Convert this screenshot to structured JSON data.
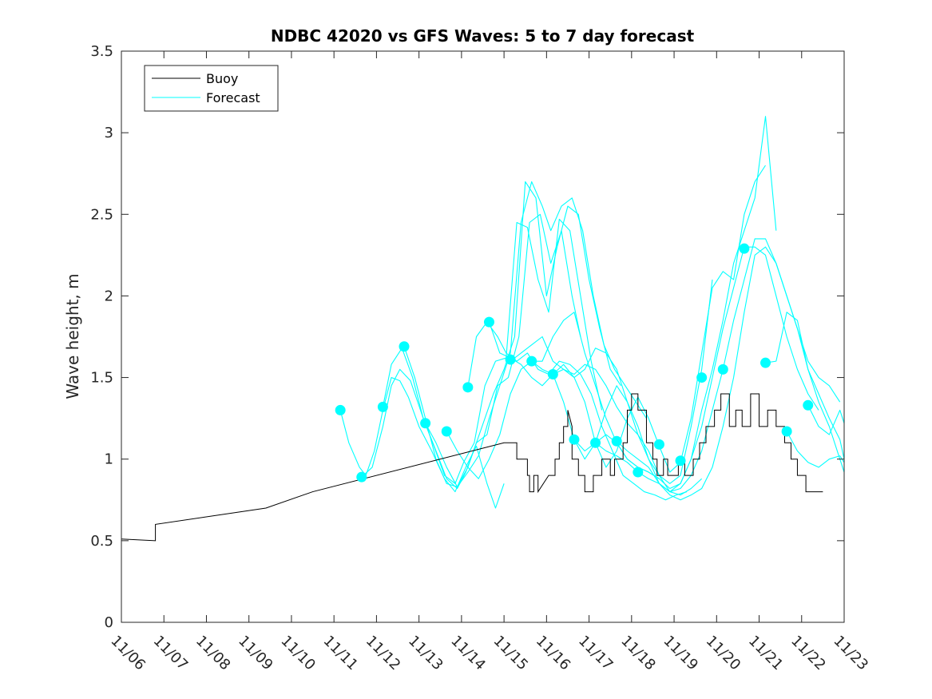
{
  "chart_data": {
    "type": "line",
    "title": "NDBC 42020 vs GFS Waves: 5 to 7 day forecast",
    "xlabel": "",
    "ylabel": "Wave height, m",
    "xlim": [
      0,
      17
    ],
    "ylim": [
      0,
      3.5
    ],
    "x_ticks": [
      0,
      1,
      2,
      3,
      4,
      5,
      6,
      7,
      8,
      9,
      10,
      11,
      12,
      13,
      14,
      15,
      16,
      17
    ],
    "x_tick_labels": [
      "11/06",
      "11/07",
      "11/08",
      "11/09",
      "11/10",
      "11/11",
      "11/12",
      "11/13",
      "11/14",
      "11/15",
      "11/16",
      "11/17",
      "11/18",
      "11/19",
      "11/20",
      "11/21",
      "11/22",
      "11/23"
    ],
    "y_ticks": [
      0,
      0.5,
      1,
      1.5,
      2,
      2.5,
      3,
      3.5
    ],
    "y_tick_labels": [
      "0",
      "0.5",
      "1",
      "1.5",
      "2",
      "2.5",
      "3",
      "3.5"
    ],
    "legend": {
      "location": "top-left",
      "entries": [
        "Buoy",
        "Forecast"
      ]
    },
    "colors": {
      "buoy": "#000000",
      "forecast": "#00ffff",
      "axis": "#262626"
    },
    "series": [
      {
        "name": "Buoy",
        "x": [
          0,
          0.8,
          0.8,
          3.4,
          4.5,
          9.0,
          9.3,
          9.3,
          9.55,
          9.55,
          9.6,
          9.6,
          9.7,
          9.7,
          9.8,
          9.8,
          10.05,
          10.05,
          10.2,
          10.2,
          10.3,
          10.3,
          10.4,
          10.4,
          10.5,
          10.5,
          10.6,
          10.6,
          10.75,
          10.75,
          10.9,
          10.9,
          11.1,
          11.1,
          11.3,
          11.3,
          11.5,
          11.5,
          11.6,
          11.6,
          11.8,
          11.8,
          11.9,
          11.9,
          12.0,
          12.0,
          12.15,
          12.15,
          12.35,
          12.35,
          12.5,
          12.5,
          12.6,
          12.6,
          12.75,
          12.75,
          12.85,
          12.85,
          13.1,
          13.1,
          13.25,
          13.25,
          13.45,
          13.45,
          13.6,
          13.6,
          13.75,
          13.75,
          13.95,
          13.95,
          14.1,
          14.1,
          14.3,
          14.3,
          14.45,
          14.45,
          14.6,
          14.6,
          14.8,
          14.8,
          15.0,
          15.0,
          15.2,
          15.2,
          15.4,
          15.4,
          15.6,
          15.6,
          15.75,
          15.75,
          15.9,
          15.9,
          16.1,
          16.1,
          16.3,
          16.3,
          16.5
        ],
        "y": [
          0.51,
          0.5,
          0.6,
          0.7,
          0.8,
          1.1,
          1.1,
          1.0,
          1.0,
          0.9,
          0.9,
          0.8,
          0.8,
          0.9,
          0.9,
          0.8,
          0.9,
          0.9,
          0.9,
          1.0,
          1.0,
          1.1,
          1.1,
          1.2,
          1.2,
          1.3,
          1.2,
          1.0,
          1.0,
          0.9,
          0.9,
          0.8,
          0.8,
          0.9,
          0.9,
          1.0,
          1.0,
          0.9,
          0.9,
          1.0,
          1.0,
          1.1,
          1.1,
          1.3,
          1.3,
          1.4,
          1.4,
          1.3,
          1.3,
          1.1,
          1.1,
          1.0,
          1.0,
          0.9,
          0.9,
          1.0,
          1.0,
          0.9,
          0.9,
          1.0,
          1.0,
          0.9,
          0.9,
          1.0,
          1.0,
          1.1,
          1.1,
          1.2,
          1.2,
          1.3,
          1.3,
          1.4,
          1.4,
          1.2,
          1.2,
          1.3,
          1.3,
          1.2,
          1.2,
          1.4,
          1.4,
          1.2,
          1.2,
          1.3,
          1.3,
          1.2,
          1.2,
          1.1,
          1.1,
          1.0,
          1.0,
          0.9,
          0.9,
          0.8,
          0.8,
          0.8,
          0.8
        ]
      },
      {
        "name": "Forecast",
        "x": [
          5.15,
          5.35,
          5.6,
          5.75,
          5.95,
          6.15,
          6.35,
          6.55,
          6.75,
          7.0,
          7.3,
          7.6,
          7.85,
          8.1,
          8.35,
          8.6,
          8.8,
          9.0
        ],
        "y": [
          1.3,
          1.1,
          0.95,
          0.9,
          1.05,
          1.3,
          1.5,
          1.48,
          1.38,
          1.2,
          1.05,
          0.88,
          0.8,
          0.95,
          1.08,
          0.85,
          0.7,
          0.85
        ]
      },
      {
        "name": "Forecast",
        "x": [
          5.65,
          5.9,
          6.15,
          6.35,
          6.55,
          6.8,
          7.1,
          7.4,
          7.65,
          7.9,
          8.1,
          8.35,
          8.6,
          8.85,
          9.1,
          9.35,
          9.6,
          9.85,
          10.1,
          10.35,
          10.6,
          10.8
        ],
        "y": [
          0.89,
          0.95,
          1.2,
          1.45,
          1.55,
          1.48,
          1.25,
          1.05,
          0.88,
          0.82,
          0.92,
          1.1,
          1.15,
          1.45,
          1.5,
          1.75,
          2.45,
          2.5,
          2.2,
          2.4,
          2.0,
          1.75
        ]
      },
      {
        "name": "Forecast",
        "x": [
          6.15,
          6.35,
          6.6,
          6.85,
          7.1,
          7.35,
          7.6,
          7.85,
          8.05,
          8.3,
          8.55,
          8.8,
          9.05,
          9.3,
          9.55,
          9.8,
          10.05,
          10.3,
          10.55,
          10.8,
          11.05,
          11.3
        ],
        "y": [
          1.32,
          1.58,
          1.68,
          1.5,
          1.25,
          1.08,
          0.9,
          0.85,
          0.98,
          1.1,
          1.45,
          1.6,
          1.62,
          2.45,
          2.42,
          2.1,
          1.9,
          2.47,
          2.4,
          2.0,
          1.6,
          1.3
        ]
      },
      {
        "name": "Forecast",
        "x": [
          6.65,
          6.9,
          7.15,
          7.4,
          7.65,
          7.9,
          8.15,
          8.35,
          8.55,
          8.75,
          9.0,
          9.25,
          9.5,
          9.75,
          10.0,
          10.25,
          10.5,
          10.75,
          11.0,
          11.25,
          11.5,
          11.75
        ],
        "y": [
          1.69,
          1.5,
          1.25,
          1.0,
          0.85,
          0.83,
          0.95,
          1.1,
          1.25,
          1.4,
          1.55,
          1.75,
          2.7,
          2.6,
          2.0,
          2.3,
          2.55,
          2.5,
          2.1,
          1.8,
          1.55,
          1.45
        ]
      },
      {
        "name": "Forecast",
        "x": [
          7.15,
          7.4,
          7.65,
          7.9,
          8.15,
          8.4,
          8.65,
          8.9,
          9.15,
          9.4,
          9.65,
          9.9,
          10.1,
          10.35,
          10.6,
          10.85,
          11.1,
          11.35,
          11.6,
          11.85,
          12.1,
          12.35
        ],
        "y": [
          1.22,
          1.1,
          0.95,
          0.83,
          0.92,
          1.02,
          1.25,
          1.45,
          1.65,
          2.45,
          2.7,
          2.55,
          2.4,
          2.55,
          2.6,
          2.4,
          2.0,
          1.7,
          1.55,
          1.45,
          1.35,
          1.25
        ]
      },
      {
        "name": "Forecast",
        "x": [
          7.65,
          7.9,
          8.15,
          8.4,
          8.65,
          8.9,
          9.15,
          9.4,
          9.65,
          9.9,
          10.15,
          10.4,
          10.65,
          10.9,
          11.15,
          11.4,
          11.65,
          11.9,
          12.15,
          12.4,
          12.65
        ],
        "y": [
          1.17,
          1.05,
          0.95,
          0.88,
          1.0,
          1.15,
          1.4,
          1.55,
          1.6,
          1.6,
          1.75,
          1.85,
          1.9,
          1.65,
          1.45,
          1.25,
          1.1,
          1.0,
          0.95,
          0.92,
          0.88
        ]
      },
      {
        "name": "Forecast",
        "x": [
          8.15,
          8.35,
          8.6,
          8.85,
          9.05,
          9.3,
          9.55,
          9.8,
          10.05,
          10.3,
          10.55,
          10.8,
          11.05,
          11.3,
          11.55,
          11.8,
          12.05,
          12.3,
          12.55,
          12.8,
          13.05,
          13.3
        ],
        "y": [
          1.44,
          1.75,
          1.84,
          1.75,
          1.65,
          1.6,
          1.65,
          1.55,
          1.52,
          1.6,
          1.58,
          1.52,
          1.4,
          1.2,
          1.05,
          0.9,
          0.85,
          0.8,
          0.78,
          0.75,
          0.78,
          0.8
        ]
      },
      {
        "name": "Forecast",
        "x": [
          8.65,
          8.9,
          9.15,
          9.4,
          9.65,
          9.9,
          10.15,
          10.4,
          10.65,
          10.9,
          11.15,
          11.4,
          11.65,
          11.9,
          12.15,
          12.4,
          12.65,
          12.9,
          13.15,
          13.4,
          13.65
        ],
        "y": [
          1.84,
          1.65,
          1.62,
          1.58,
          1.5,
          1.45,
          1.52,
          1.55,
          1.52,
          1.58,
          1.55,
          1.45,
          1.32,
          1.22,
          1.15,
          1.05,
          0.9,
          0.8,
          0.78,
          0.82,
          0.88
        ]
      },
      {
        "name": "Forecast",
        "x": [
          9.15,
          9.4,
          9.65,
          9.9,
          10.15,
          10.4,
          10.65,
          10.9,
          11.15,
          11.4,
          11.65,
          11.9,
          12.15,
          12.4,
          12.65,
          12.9,
          13.15,
          13.4,
          13.65,
          13.9
        ],
        "y": [
          1.6,
          1.65,
          1.7,
          1.75,
          1.6,
          1.55,
          1.5,
          1.55,
          1.68,
          1.65,
          1.55,
          1.35,
          1.15,
          1.0,
          0.9,
          0.85,
          0.9,
          1.2,
          1.55,
          2.1
        ]
      },
      {
        "name": "Forecast",
        "x": [
          9.65,
          9.9,
          10.15,
          10.4,
          10.65,
          10.9,
          11.15,
          11.4,
          11.65,
          11.9,
          12.15,
          12.4,
          12.65,
          12.9,
          13.15,
          13.4,
          13.65,
          13.9,
          14.15,
          14.4,
          14.65,
          14.9,
          15.15
        ],
        "y": [
          1.6,
          1.55,
          1.52,
          1.58,
          1.5,
          1.35,
          1.1,
          0.95,
          1.05,
          1.25,
          1.38,
          1.25,
          1.08,
          0.92,
          0.98,
          1.25,
          1.65,
          2.05,
          2.15,
          2.1,
          2.5,
          2.7,
          2.8
        ]
      },
      {
        "name": "Forecast",
        "x": [
          10.15,
          10.4,
          10.65,
          10.9,
          11.15,
          11.4,
          11.65,
          11.9,
          12.15,
          12.4,
          12.65,
          12.9,
          13.15,
          13.4,
          13.65,
          13.9,
          14.15,
          14.4,
          14.65,
          14.9,
          15.15,
          15.4
        ],
        "y": [
          1.52,
          1.35,
          1.12,
          1.0,
          1.1,
          1.3,
          1.45,
          1.35,
          1.2,
          1.0,
          0.85,
          0.8,
          0.85,
          1.0,
          1.3,
          1.55,
          1.85,
          2.2,
          2.4,
          2.6,
          3.1,
          2.4
        ]
      },
      {
        "name": "Forecast",
        "x": [
          10.65,
          10.9,
          11.15,
          11.4,
          11.65,
          11.9,
          12.15,
          12.4,
          12.65,
          12.9,
          13.15,
          13.4,
          13.65,
          13.9,
          14.15,
          14.4,
          14.65,
          14.9,
          15.15,
          15.4,
          15.65,
          15.9,
          16.15,
          16.4
        ],
        "y": [
          1.12,
          1.05,
          1.1,
          1.15,
          1.1,
          1.0,
          0.95,
          0.92,
          0.88,
          0.82,
          0.85,
          1.0,
          1.2,
          1.5,
          1.8,
          2.05,
          2.3,
          2.3,
          2.25,
          2.0,
          1.75,
          1.55,
          1.4,
          1.3
        ]
      },
      {
        "name": "Forecast",
        "x": [
          11.15,
          11.4,
          11.65,
          11.9,
          12.15,
          12.4,
          12.65,
          12.9,
          13.15,
          13.4,
          13.65,
          13.9,
          14.15,
          14.4,
          14.65,
          14.9,
          15.15,
          15.4,
          15.65,
          15.9,
          16.15,
          16.4,
          16.65,
          16.9
        ],
        "y": [
          1.1,
          1.05,
          1.02,
          0.98,
          0.92,
          0.88,
          0.85,
          0.8,
          0.82,
          0.9,
          1.05,
          1.3,
          1.55,
          1.85,
          2.1,
          2.35,
          2.35,
          2.2,
          2.0,
          1.8,
          1.6,
          1.5,
          1.45,
          1.35
        ]
      },
      {
        "name": "Forecast",
        "x": [
          11.65,
          11.9,
          12.15,
          12.4,
          12.65,
          12.9,
          13.15,
          13.4,
          13.65,
          13.9,
          14.15,
          14.4,
          14.65,
          14.9,
          15.15,
          15.4,
          15.65,
          15.9,
          16.15,
          16.4,
          16.65,
          16.9,
          17.0
        ],
        "y": [
          1.11,
          1.05,
          1.0,
          0.95,
          0.85,
          0.78,
          0.75,
          0.78,
          0.82,
          0.95,
          1.2,
          1.5,
          1.9,
          2.25,
          2.3,
          2.2,
          2.0,
          1.8,
          1.55,
          1.4,
          1.25,
          1.12,
          1.0
        ]
      },
      {
        "name": "Forecast",
        "x": [
          15.15,
          15.4,
          15.65,
          15.9,
          16.15,
          16.4,
          16.65,
          16.9,
          17.0
        ],
        "y": [
          1.59,
          1.6,
          1.9,
          1.85,
          1.55,
          1.35,
          1.2,
          1.0,
          0.92
        ]
      },
      {
        "name": "Forecast",
        "x": [
          15.65,
          15.9,
          16.15,
          16.4,
          16.65,
          16.9,
          17.0
        ],
        "y": [
          1.17,
          1.05,
          0.98,
          0.95,
          1.0,
          1.02,
          0.98
        ]
      },
      {
        "name": "Forecast",
        "x": [
          16.15,
          16.4,
          16.65,
          16.9,
          17.0
        ],
        "y": [
          1.33,
          1.2,
          1.15,
          1.3,
          1.22
        ]
      }
    ],
    "forecast_markers": {
      "x": [
        5.15,
        5.65,
        6.15,
        6.65,
        7.15,
        7.65,
        8.15,
        8.65,
        9.15,
        9.65,
        10.15,
        10.65,
        11.15,
        11.65,
        12.15,
        12.65,
        13.15,
        13.65,
        14.15,
        14.65,
        15.15,
        15.65,
        16.15
      ],
      "y": [
        1.3,
        0.89,
        1.32,
        1.69,
        1.22,
        1.17,
        1.44,
        1.84,
        1.61,
        1.6,
        1.52,
        1.12,
        1.1,
        1.11,
        0.92,
        1.09,
        0.99,
        1.5,
        1.55,
        2.29,
        1.59,
        1.17,
        1.33
      ]
    }
  }
}
